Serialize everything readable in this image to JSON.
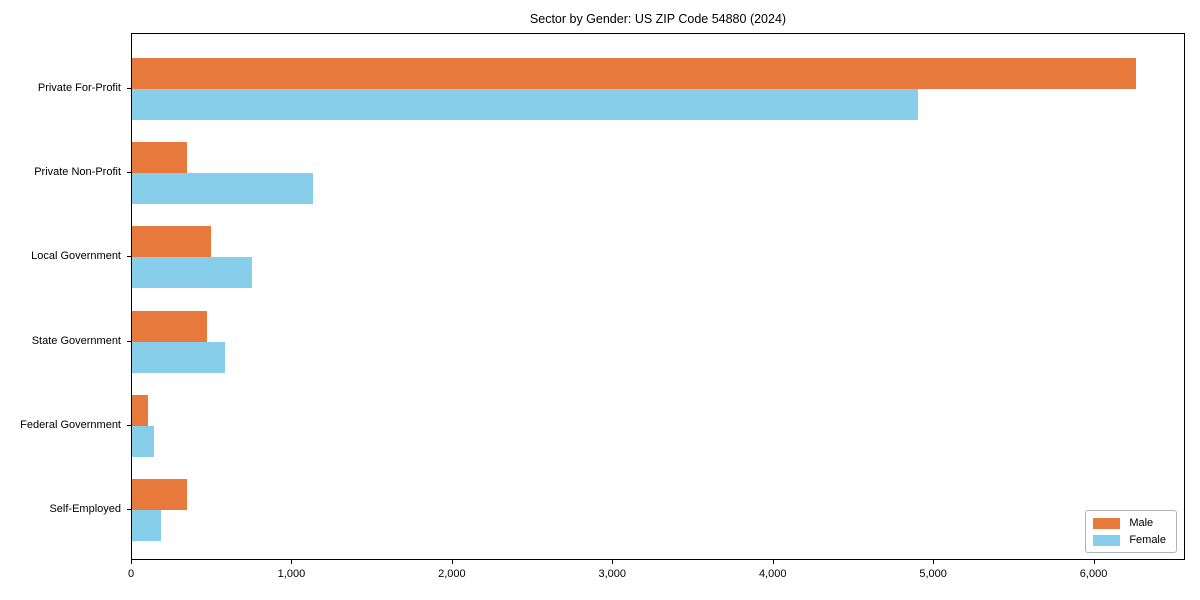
{
  "chart_data": {
    "type": "bar",
    "orientation": "horizontal",
    "title": "Sector by Gender: US ZIP Code 54880 (2024)",
    "categories": [
      "Private For-Profit",
      "Private Non-Profit",
      "Local Government",
      "State Government",
      "Federal Government",
      "Self-Employed"
    ],
    "series": [
      {
        "name": "Male",
        "color": "#e8793c",
        "values": [
          6260,
          340,
          490,
          470,
          100,
          340
        ]
      },
      {
        "name": "Female",
        "color": "#87ceeb",
        "values": [
          4900,
          1130,
          750,
          580,
          135,
          180
        ]
      }
    ],
    "xlabel": "",
    "ylabel": "",
    "xlim": [
      0,
      6570
    ],
    "x_ticks": [
      0,
      1000,
      2000,
      3000,
      4000,
      5000,
      6000
    ],
    "x_tick_labels": [
      "0",
      "1,000",
      "2,000",
      "3,000",
      "4,000",
      "5,000",
      "6,000"
    ],
    "grid": false,
    "legend": {
      "position": "lower right",
      "entries": [
        "Male",
        "Female"
      ]
    }
  }
}
